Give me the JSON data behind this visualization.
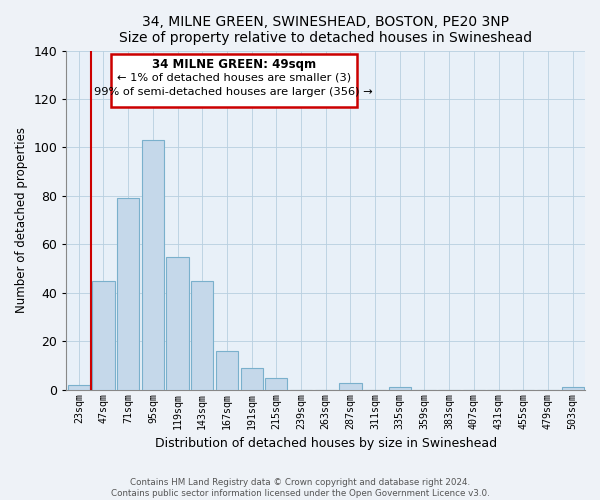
{
  "title": "34, MILNE GREEN, SWINESHEAD, BOSTON, PE20 3NP",
  "subtitle": "Size of property relative to detached houses in Swineshead",
  "xlabel": "Distribution of detached houses by size in Swineshead",
  "ylabel": "Number of detached properties",
  "bar_labels": [
    "23sqm",
    "47sqm",
    "71sqm",
    "95sqm",
    "119sqm",
    "143sqm",
    "167sqm",
    "191sqm",
    "215sqm",
    "239sqm",
    "263sqm",
    "287sqm",
    "311sqm",
    "335sqm",
    "359sqm",
    "383sqm",
    "407sqm",
    "431sqm",
    "455sqm",
    "479sqm",
    "503sqm"
  ],
  "bar_values": [
    2,
    45,
    79,
    103,
    55,
    45,
    16,
    9,
    5,
    0,
    0,
    3,
    0,
    1,
    0,
    0,
    0,
    0,
    0,
    0,
    1
  ],
  "bar_color": "#c5d8ea",
  "bar_edge_color": "#7ab0cc",
  "highlight_color": "#cc0000",
  "ylim": [
    0,
    140
  ],
  "yticks": [
    0,
    20,
    40,
    60,
    80,
    100,
    120,
    140
  ],
  "annotation_title": "34 MILNE GREEN: 49sqm",
  "annotation_line1": "← 1% of detached houses are smaller (3)",
  "annotation_line2": "99% of semi-detached houses are larger (356) →",
  "annotation_box_color": "#ffffff",
  "annotation_box_edge": "#cc0000",
  "footer_line1": "Contains HM Land Registry data © Crown copyright and database right 2024.",
  "footer_line2": "Contains public sector information licensed under the Open Government Licence v3.0.",
  "background_color": "#eef2f7",
  "plot_background": "#e8f0f8"
}
